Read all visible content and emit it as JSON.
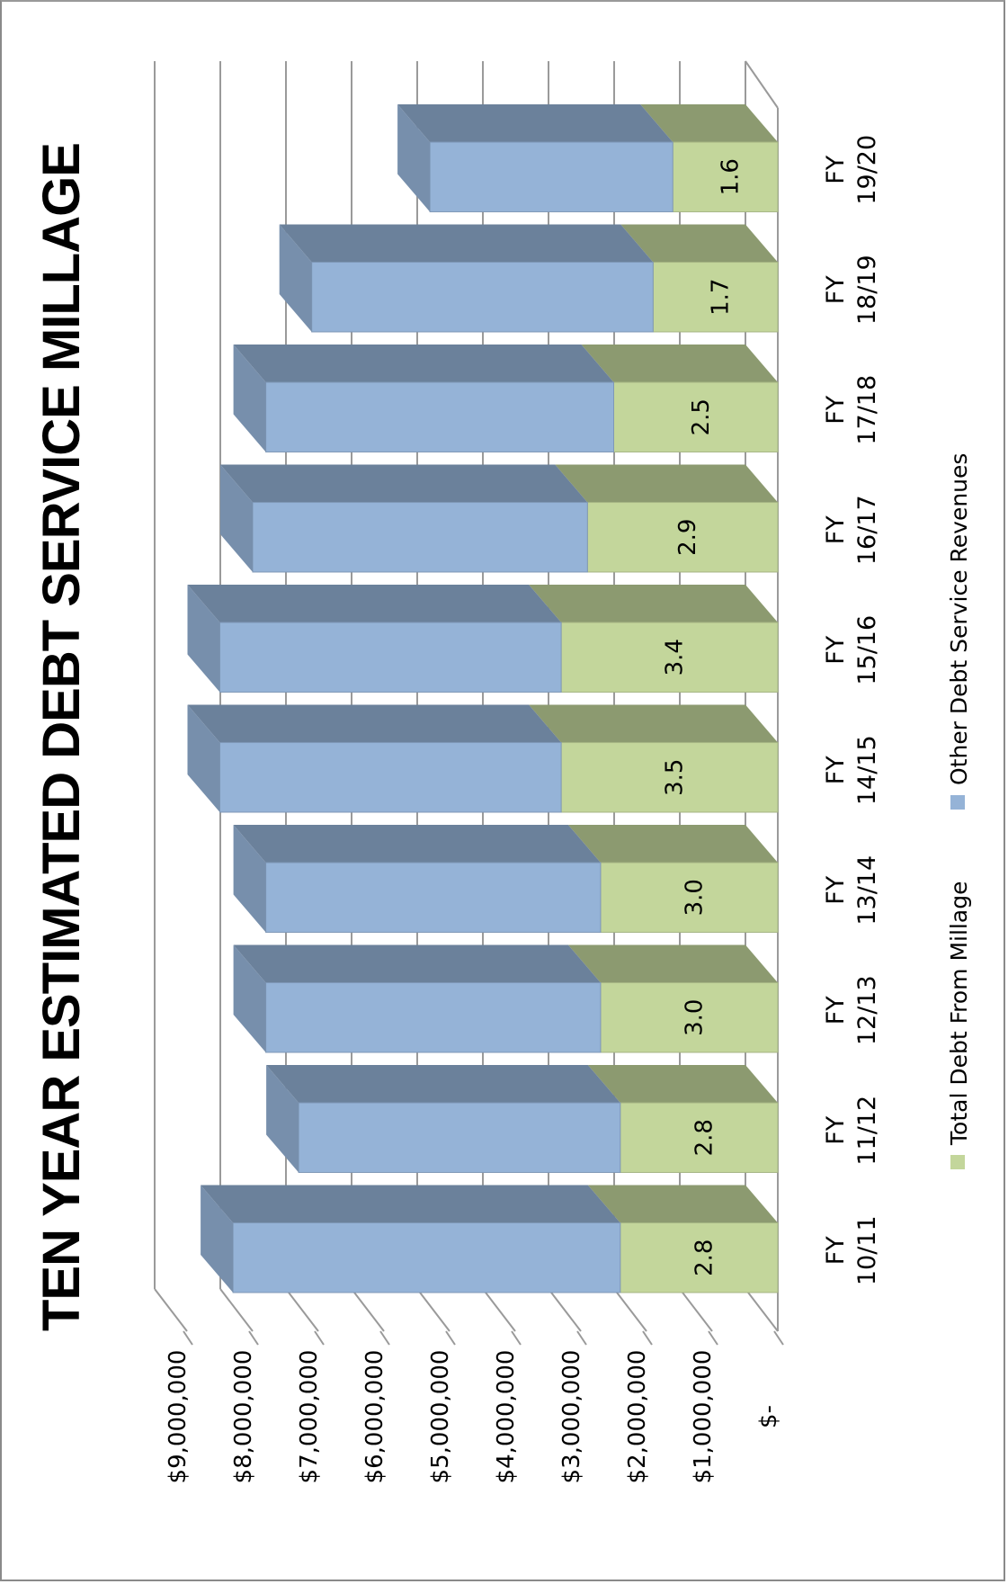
{
  "chart_data": {
    "type": "bar",
    "stacked": true,
    "orientation": "vertical, rendered rotated 90° counter-clockwise with 3D effect",
    "title": "TEN YEAR ESTIMATED DEBT SERVICE MILLAGE",
    "categories": [
      [
        "FY",
        "10/11"
      ],
      [
        "FY",
        "11/12"
      ],
      [
        "FY",
        "12/13"
      ],
      [
        "FY",
        "13/14"
      ],
      [
        "FY",
        "14/15"
      ],
      [
        "FY",
        "15/16"
      ],
      [
        "FY",
        "16/17"
      ],
      [
        "FY",
        "17/18"
      ],
      [
        "FY",
        "18/19"
      ],
      [
        "FY",
        "19/20"
      ]
    ],
    "y_ticks": [
      "$-",
      "$1,000,000",
      "$2,000,000",
      "$3,000,000",
      "$4,000,000",
      "$5,000,000",
      "$6,000,000",
      "$7,000,000",
      "$8,000,000",
      "$9,000,000"
    ],
    "ylim": [
      0,
      9000000
    ],
    "grid": true,
    "series": [
      {
        "name": "Total Debt From Millage",
        "color": "#c3d69b",
        "values": [
          2400000,
          2400000,
          2700000,
          2700000,
          3300000,
          3300000,
          2900000,
          2500000,
          1900000,
          1600000
        ],
        "labels": [
          "2.8",
          "2.8",
          "3.0",
          "3.0",
          "3.5",
          "3.4",
          "2.9",
          "2.5",
          "1.7",
          "1.6"
        ]
      },
      {
        "name": "Other Debt Service Revenues",
        "color": "#95b3d7",
        "values": [
          5900000,
          4900000,
          5100000,
          5100000,
          5200000,
          5200000,
          5100000,
          5300000,
          5200000,
          3700000
        ]
      }
    ],
    "legend": "bottom"
  }
}
